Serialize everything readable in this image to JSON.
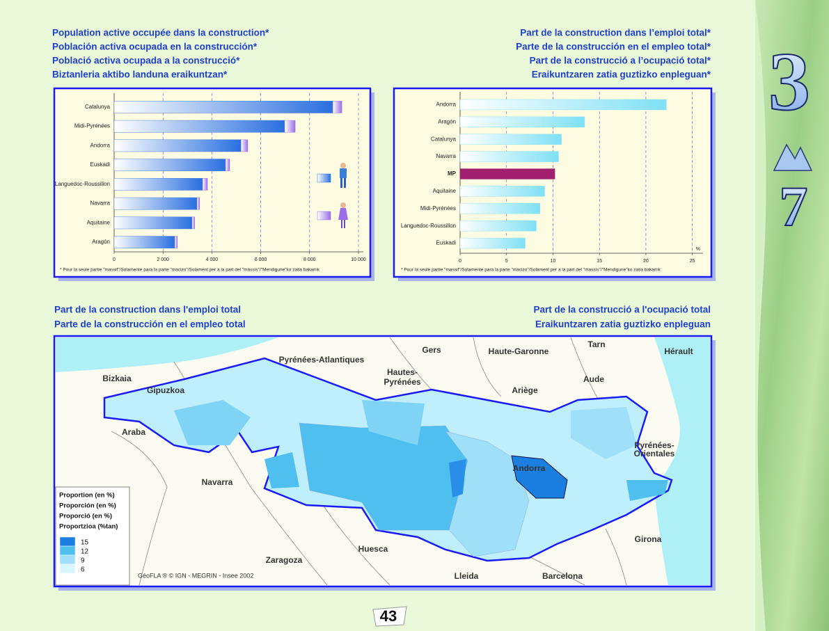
{
  "chart_data": [
    {
      "type": "bar",
      "orientation": "horizontal",
      "stacked": true,
      "title": [
        "Population active occupée dans la construction*",
        "Población activa ocupada en la construcción*",
        "Població activa ocupada a la construcció*",
        "Biztanleria aktibo landuna eraikuntzan*"
      ],
      "categories": [
        "Catalunya",
        "Midi-Pyrénées",
        "Andorra",
        "Euskadi",
        "Languedoc-Roussillon",
        "Navarra",
        "Aquitaine",
        "Aragón"
      ],
      "series": [
        {
          "color": "#2a6fe0",
          "values": [
            8950,
            6980,
            5190,
            4560,
            3620,
            3390,
            3190,
            2480
          ]
        },
        {
          "color": "#9a6ee8",
          "values": [
            370,
            430,
            280,
            170,
            200,
            110,
            110,
            110
          ]
        }
      ],
      "xlim": [
        0,
        10000
      ],
      "xticks": [
        0,
        {
          "value": 2000,
          "label": "2 000"
        },
        {
          "value": 4000,
          "label": "4 000"
        },
        {
          "value": 6000,
          "label": "6 000"
        },
        {
          "value": 8000,
          "label": "8 000"
        },
        {
          "value": 10000,
          "label": "10 000"
        }
      ],
      "grid": true,
      "footnote": "* Pour la seule partie \"massif\"/Solamente para la parte \"macizo\"/Solament per a la part del \"massís\"/\"Mendigune\"ko zatia bakarrik"
    },
    {
      "type": "bar",
      "orientation": "horizontal",
      "title": [
        "Part de la construction dans l’emploi total*",
        "Parte de la construcción en el empleo total*",
        "Part de la construcció a l’ocupació total*",
        "Eraikuntzaren zatia guztizko enpleguan*"
      ],
      "categories": [
        "Andorra",
        "Aragón",
        "Catalunya",
        "Navarra",
        "MP",
        "Aquitaine",
        "Midi-Pyrénées",
        "Languedoc-Roussillon",
        "Euskadi"
      ],
      "values": [
        22.2,
        13.4,
        10.9,
        10.6,
        10.2,
        9.1,
        8.6,
        8.2,
        7.0
      ],
      "colors": [
        "#7fe0f5",
        "#7fe0f5",
        "#7fe0f5",
        "#7fe0f5",
        "#a0206e",
        "#7fe0f5",
        "#7fe0f5",
        "#7fe0f5",
        "#7fe0f5"
      ],
      "xlim": [
        0,
        26
      ],
      "xticks": [
        0,
        5,
        10,
        15,
        20,
        25
      ],
      "x_unit": "%",
      "grid": true,
      "footnote": "* Pour la seule partie \"massif\"/Solamente para la parte \"macizo\"/Solament per a la part del \"massís\"/\"Mendigune\"ko zatia bakarrik"
    }
  ],
  "map": {
    "title_left": [
      "Part de la construction dans l'emploi total",
      "Parte de la construcción en el empleo total"
    ],
    "title_right": [
      "Part de la construcció a l'ocupació total",
      "Eraikuntzaren zatia guztizko enpleguan"
    ],
    "labels": [
      "Bizkaia",
      "Gipuzkoa",
      "Araba",
      "Navarra",
      "Zaragoza",
      "Huesca",
      "Lleida",
      "Barcelona",
      "Girona",
      "Pyrénées-Atlantiques",
      "Hautes-",
      "Pyrénées",
      "Gers",
      "Haute-Garonne",
      "Tarn",
      "Hérault",
      "Aude",
      "Ariège",
      "Pyrénées-",
      "Orientales",
      "Andorra"
    ],
    "legend": {
      "title": [
        "Proportion (en %)",
        "Proporción (en %)",
        "Proporció (en %)",
        "Proportzioa (%tan)"
      ],
      "classes": [
        {
          "value": 15,
          "color": "#1a7fe0"
        },
        {
          "value": 12,
          "color": "#4fbff0"
        },
        {
          "value": 9,
          "color": "#9fe0f8"
        },
        {
          "value": 6,
          "color": "#d8f6fd"
        }
      ]
    },
    "credit": "GéoFLA ® © IGN - MEGRIN - Insee 2002"
  },
  "page": {
    "chapter": "3",
    "section": "7",
    "number": "43"
  }
}
